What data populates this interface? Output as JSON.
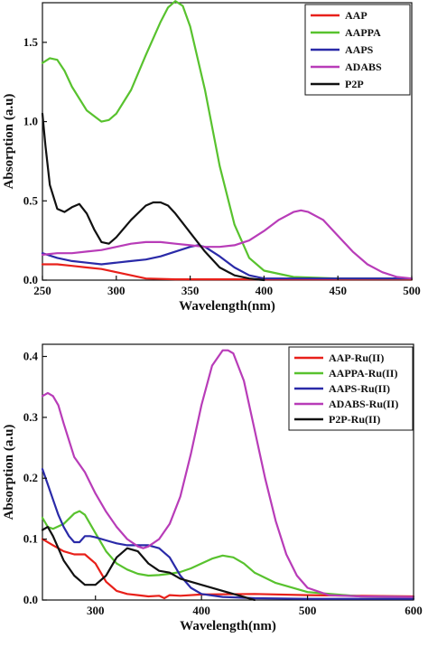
{
  "chart_data": [
    {
      "type": "line",
      "xlabel": "Wavelength(nm)",
      "ylabel": "Absorption (a.u)",
      "xlim": [
        250,
        500
      ],
      "ylim": [
        0,
        1.75
      ],
      "xticks": [
        250,
        300,
        350,
        400,
        450,
        500
      ],
      "xtick_labels": [
        "250",
        "300",
        "350",
        "400",
        "450",
        "500"
      ],
      "yticks": [
        0,
        0.5,
        1.0,
        1.5
      ],
      "ytick_labels": [
        "0.0",
        "0.5",
        "1.0",
        "1.5"
      ],
      "legend_position": "top-right",
      "series": [
        {
          "name": "AAP",
          "color": "#e8201a",
          "x": [
            250,
            260,
            270,
            280,
            290,
            300,
            310,
            320,
            340,
            360,
            380,
            400,
            450,
            500
          ],
          "y": [
            0.1,
            0.1,
            0.09,
            0.08,
            0.07,
            0.05,
            0.03,
            0.01,
            0.005,
            0.005,
            0.005,
            0.005,
            0.005,
            0.005
          ]
        },
        {
          "name": "AAPPA",
          "color": "#58c22e",
          "x": [
            250,
            255,
            260,
            265,
            270,
            280,
            290,
            295,
            300,
            310,
            320,
            330,
            335,
            340,
            345,
            350,
            360,
            370,
            380,
            390,
            400,
            420,
            450,
            500
          ],
          "y": [
            1.37,
            1.4,
            1.39,
            1.32,
            1.22,
            1.07,
            1.0,
            1.01,
            1.05,
            1.2,
            1.42,
            1.63,
            1.72,
            1.76,
            1.73,
            1.6,
            1.2,
            0.72,
            0.35,
            0.14,
            0.06,
            0.02,
            0.01,
            0.01
          ]
        },
        {
          "name": "AAPS",
          "color": "#2a2aa8",
          "x": [
            250,
            260,
            270,
            280,
            290,
            300,
            310,
            320,
            330,
            340,
            350,
            355,
            360,
            370,
            380,
            390,
            400,
            450,
            500
          ],
          "y": [
            0.17,
            0.14,
            0.12,
            0.11,
            0.1,
            0.11,
            0.12,
            0.13,
            0.15,
            0.18,
            0.21,
            0.22,
            0.21,
            0.15,
            0.08,
            0.03,
            0.01,
            0.01,
            0.01
          ]
        },
        {
          "name": "ADABS",
          "color": "#b83cb8",
          "x": [
            250,
            260,
            270,
            280,
            290,
            300,
            310,
            320,
            330,
            340,
            350,
            360,
            370,
            380,
            390,
            400,
            410,
            420,
            425,
            430,
            440,
            450,
            460,
            470,
            480,
            490,
            500
          ],
          "y": [
            0.16,
            0.17,
            0.17,
            0.18,
            0.19,
            0.21,
            0.23,
            0.24,
            0.24,
            0.23,
            0.22,
            0.21,
            0.21,
            0.22,
            0.25,
            0.31,
            0.38,
            0.43,
            0.44,
            0.43,
            0.38,
            0.28,
            0.18,
            0.1,
            0.05,
            0.02,
            0.01
          ]
        },
        {
          "name": "P2P",
          "color": "#111111",
          "x": [
            250,
            252,
            255,
            260,
            265,
            270,
            275,
            280,
            285,
            290,
            295,
            300,
            310,
            320,
            325,
            330,
            335,
            340,
            350,
            360,
            370,
            380,
            390,
            400
          ],
          "y": [
            1.05,
            0.85,
            0.6,
            0.45,
            0.43,
            0.46,
            0.48,
            0.42,
            0.32,
            0.24,
            0.23,
            0.27,
            0.38,
            0.47,
            0.49,
            0.49,
            0.47,
            0.42,
            0.3,
            0.18,
            0.08,
            0.03,
            0.01,
            0.0
          ]
        }
      ]
    },
    {
      "type": "line",
      "xlabel": "Wavelength(nm)",
      "ylabel": "Absorption (a.u)",
      "xlim": [
        250,
        600
      ],
      "ylim": [
        0,
        0.42
      ],
      "xticks": [
        300,
        400,
        500,
        600
      ],
      "xtick_labels": [
        "300",
        "400",
        "500",
        "600"
      ],
      "yticks": [
        0,
        0.1,
        0.2,
        0.3,
        0.4
      ],
      "ytick_labels": [
        "0.0",
        "0.1",
        "0.2",
        "0.3",
        "0.4"
      ],
      "legend_position": "top-right",
      "series": [
        {
          "name": "AAP-Ru(II)",
          "color": "#e8201a",
          "x": [
            250,
            260,
            270,
            280,
            290,
            300,
            310,
            320,
            330,
            340,
            350,
            360,
            365,
            370,
            380,
            400,
            450,
            500,
            550,
            600
          ],
          "y": [
            0.1,
            0.09,
            0.08,
            0.075,
            0.075,
            0.06,
            0.03,
            0.015,
            0.01,
            0.008,
            0.006,
            0.007,
            0.003,
            0.008,
            0.007,
            0.009,
            0.01,
            0.008,
            0.007,
            0.006
          ]
        },
        {
          "name": "AAPPA-Ru(II)",
          "color": "#58c22e",
          "x": [
            250,
            255,
            260,
            270,
            280,
            285,
            290,
            300,
            310,
            320,
            330,
            340,
            350,
            360,
            370,
            380,
            390,
            400,
            410,
            420,
            430,
            440,
            450,
            470,
            500,
            550,
            600
          ],
          "y": [
            0.135,
            0.12,
            0.117,
            0.125,
            0.142,
            0.146,
            0.14,
            0.11,
            0.08,
            0.06,
            0.05,
            0.043,
            0.04,
            0.041,
            0.043,
            0.046,
            0.052,
            0.06,
            0.068,
            0.073,
            0.07,
            0.06,
            0.045,
            0.028,
            0.013,
            0.006,
            0.005
          ]
        },
        {
          "name": "AAPS-Ru(II)",
          "color": "#2a2aa8",
          "x": [
            250,
            255,
            260,
            265,
            270,
            275,
            280,
            285,
            290,
            295,
            300,
            310,
            320,
            330,
            340,
            350,
            360,
            370,
            380,
            390,
            400,
            420,
            450,
            500,
            600
          ],
          "y": [
            0.215,
            0.19,
            0.165,
            0.14,
            0.12,
            0.105,
            0.095,
            0.095,
            0.105,
            0.105,
            0.103,
            0.098,
            0.093,
            0.09,
            0.09,
            0.09,
            0.085,
            0.07,
            0.04,
            0.02,
            0.01,
            0.005,
            0.003,
            0.002,
            0.002
          ]
        },
        {
          "name": "ADABS-Ru(II)",
          "color": "#b83cb8",
          "x": [
            250,
            255,
            260,
            265,
            270,
            280,
            290,
            300,
            310,
            320,
            330,
            340,
            345,
            350,
            360,
            370,
            380,
            390,
            400,
            410,
            420,
            425,
            430,
            440,
            450,
            460,
            470,
            480,
            490,
            500,
            520,
            550,
            600
          ],
          "y": [
            0.335,
            0.34,
            0.335,
            0.32,
            0.29,
            0.235,
            0.21,
            0.175,
            0.145,
            0.12,
            0.1,
            0.088,
            0.085,
            0.088,
            0.1,
            0.125,
            0.17,
            0.24,
            0.32,
            0.385,
            0.41,
            0.41,
            0.405,
            0.36,
            0.28,
            0.2,
            0.13,
            0.075,
            0.04,
            0.02,
            0.008,
            0.006,
            0.005
          ]
        },
        {
          "name": "P2P-Ru(II)",
          "color": "#111111",
          "x": [
            250,
            255,
            260,
            265,
            270,
            280,
            290,
            300,
            310,
            320,
            330,
            340,
            350,
            360,
            370,
            380,
            390,
            400,
            420,
            440,
            450
          ],
          "y": [
            0.115,
            0.12,
            0.105,
            0.085,
            0.065,
            0.04,
            0.025,
            0.025,
            0.04,
            0.07,
            0.085,
            0.08,
            0.06,
            0.048,
            0.045,
            0.035,
            0.03,
            0.025,
            0.015,
            0.005,
            0.0
          ]
        }
      ]
    }
  ]
}
